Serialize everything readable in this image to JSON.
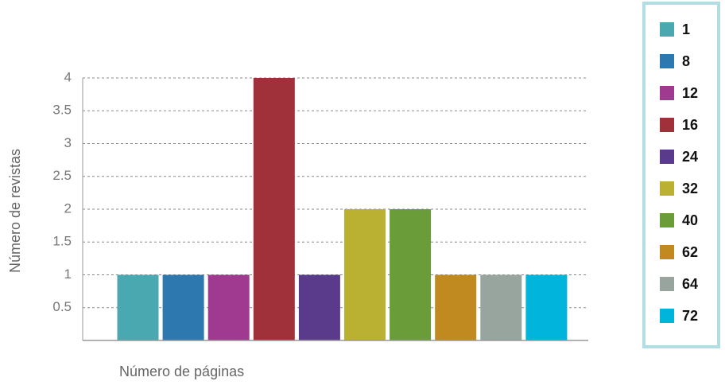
{
  "chart_data": {
    "type": "bar",
    "x_label": "Número de páginas",
    "y_label": "Número de revistas",
    "categories": [
      "1",
      "8",
      "12",
      "16",
      "24",
      "32",
      "40",
      "62",
      "64",
      "72"
    ],
    "values": [
      1,
      1,
      1,
      4,
      1,
      2,
      2,
      1,
      1,
      1
    ],
    "colors": [
      "#4aa8b0",
      "#2e78b0",
      "#a03a90",
      "#a0303a",
      "#5a3a8a",
      "#bab032",
      "#6a9c3a",
      "#c08a20",
      "#98a49e",
      "#00b4dc"
    ],
    "ylim": [
      0,
      4
    ],
    "yticks": [
      0.5,
      1,
      1.5,
      2,
      2.5,
      3,
      3.5,
      4
    ],
    "grid": true,
    "legend": "right"
  }
}
